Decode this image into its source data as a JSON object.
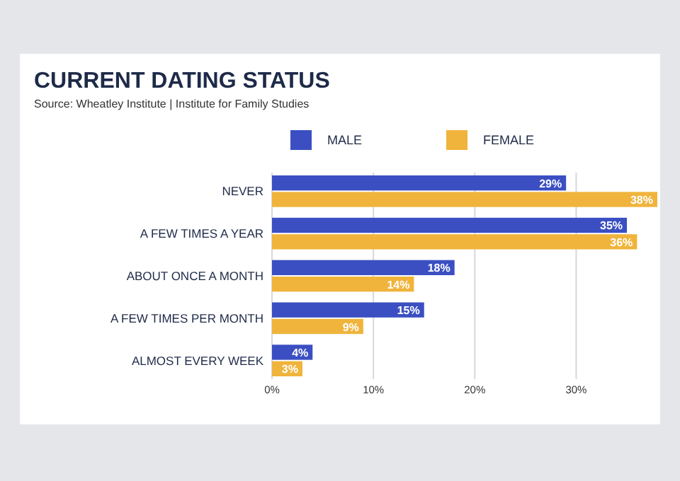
{
  "chart_data": {
    "type": "bar",
    "orientation": "horizontal",
    "title": "CURRENT DATING STATUS",
    "subtitle": "Source: Wheatley Institute | Institute for Family Studies",
    "categories": [
      "NEVER",
      "A FEW TIMES A YEAR",
      "ABOUT ONCE A MONTH",
      "A FEW TIMES PER MONTH",
      "ALMOST EVERY WEEK"
    ],
    "series": [
      {
        "name": "MALE",
        "color": "#3b4fc2",
        "values": [
          29,
          35,
          18,
          15,
          4
        ],
        "value_labels": [
          "29%",
          "35%",
          "18%",
          "15%",
          "4%"
        ]
      },
      {
        "name": "FEMALE",
        "color": "#f0b43c",
        "values": [
          38,
          36,
          14,
          9,
          3
        ],
        "value_labels": [
          "38%",
          "36%",
          "14%",
          "9%",
          "3%"
        ]
      }
    ],
    "xlim": [
      0,
      38
    ],
    "xticks": [
      {
        "value": 0,
        "label": "0%"
      },
      {
        "value": 10,
        "label": "10%"
      },
      {
        "value": 20,
        "label": "20%"
      },
      {
        "value": 30,
        "label": "30%"
      }
    ],
    "grid": "x",
    "legend": "top"
  }
}
